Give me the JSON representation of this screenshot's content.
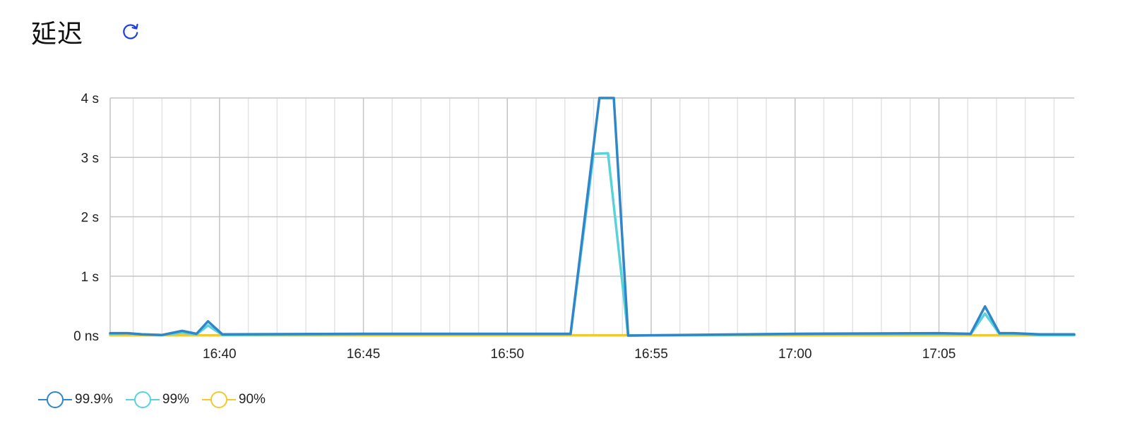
{
  "page": {
    "title": "延迟",
    "refresh_icon": "refresh-icon"
  },
  "colors": {
    "p999": "#2f86c8",
    "p99": "#59d3da",
    "p90": "#f2ca2d",
    "grid_major": "#c4c4c4",
    "grid_minor": "#e3e3e3",
    "axis_text": "#222222",
    "refresh": "#1a3de8"
  },
  "chart_data": {
    "type": "line",
    "title": "延迟",
    "xlabel": "",
    "ylabel": "",
    "x_unit": "minutes since 16:00",
    "xlim": [
      36.2,
      69.7
    ],
    "ylim": [
      0,
      4
    ],
    "yticks": [
      {
        "value": 0,
        "label": "0 ns"
      },
      {
        "value": 1,
        "label": "1 s"
      },
      {
        "value": 2,
        "label": "2 s"
      },
      {
        "value": 3,
        "label": "3 s"
      },
      {
        "value": 4,
        "label": "4 s"
      }
    ],
    "xticks": [
      {
        "value": 40,
        "label": "16:40"
      },
      {
        "value": 45,
        "label": "16:45"
      },
      {
        "value": 50,
        "label": "16:50"
      },
      {
        "value": 55,
        "label": "16:55"
      },
      {
        "value": 60,
        "label": "17:00"
      },
      {
        "value": 65,
        "label": "17:05"
      }
    ],
    "x_minor_step": 1,
    "grid": true,
    "legend_position": "bottom-left",
    "series": [
      {
        "name": "99.9%",
        "color_key": "p999",
        "x": [
          36.2,
          36.8,
          37.3,
          38.0,
          38.7,
          39.2,
          39.6,
          40.1,
          45,
          52.2,
          53.2,
          53.7,
          54.2,
          60,
          65,
          66.1,
          66.6,
          67.1,
          67.6,
          68.5,
          69.7
        ],
        "values": [
          0.04,
          0.04,
          0.02,
          0.01,
          0.08,
          0.03,
          0.24,
          0.02,
          0.03,
          0.03,
          4.0,
          4.0,
          0.0,
          0.03,
          0.04,
          0.03,
          0.49,
          0.04,
          0.04,
          0.02,
          0.02
        ]
      },
      {
        "name": "99%",
        "color_key": "p99",
        "x": [
          36.2,
          36.8,
          37.3,
          38.0,
          38.7,
          39.2,
          39.6,
          40.1,
          45,
          52.2,
          53.0,
          53.5,
          54.2,
          60,
          65,
          66.1,
          66.6,
          67.1,
          67.6,
          68.5,
          69.7
        ],
        "values": [
          0.03,
          0.04,
          0.02,
          0.01,
          0.05,
          0.02,
          0.17,
          0.01,
          0.02,
          0.02,
          3.06,
          3.07,
          0.0,
          0.02,
          0.03,
          0.02,
          0.37,
          0.03,
          0.03,
          0.01,
          0.01
        ]
      },
      {
        "name": "90%",
        "color_key": "p90",
        "x": [
          36.2,
          69.7
        ],
        "values": [
          0.005,
          0.005
        ]
      }
    ]
  }
}
